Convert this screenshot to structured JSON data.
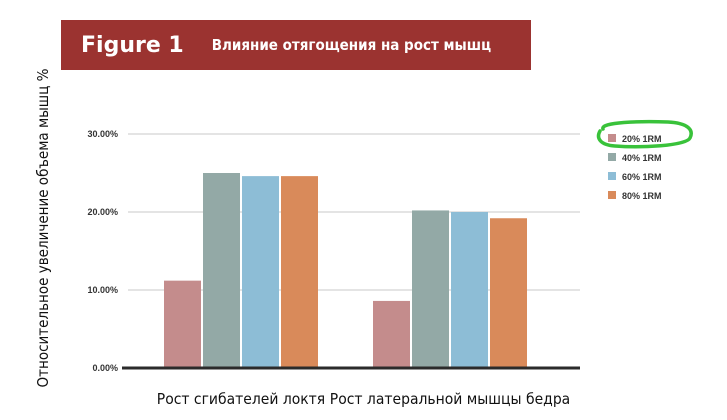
{
  "header": {
    "figure_label": "Figure 1",
    "title": "Влияние отягощения на рост мышц"
  },
  "chart_data": {
    "type": "bar",
    "title": "Влияние отягощения на рост мышц",
    "xlabel": "",
    "ylabel": "Относительное увеличение объема мышц %",
    "ylim": [
      0,
      30
    ],
    "yticks": [
      "0.00%",
      "10.00%",
      "20.00%",
      "30.00%"
    ],
    "categories": [
      "Рост сгибателей локтя",
      "Рост латеральной мышцы бедра"
    ],
    "series": [
      {
        "name": "20% 1RM",
        "color": "#c48c8c",
        "values": [
          11.2,
          8.6
        ]
      },
      {
        "name": "40% 1RM",
        "color": "#93a9a6",
        "values": [
          25.0,
          20.2
        ]
      },
      {
        "name": "60% 1RM",
        "color": "#8dbdd6",
        "values": [
          24.6,
          20.0
        ]
      },
      {
        "name": "80% 1RM",
        "color": "#d98a5a",
        "values": [
          24.6,
          19.2
        ]
      }
    ],
    "grid": true,
    "legend_position": "right",
    "highlighted_legend_item": "20% 1RM",
    "highlight_color": "#39c23a"
  }
}
